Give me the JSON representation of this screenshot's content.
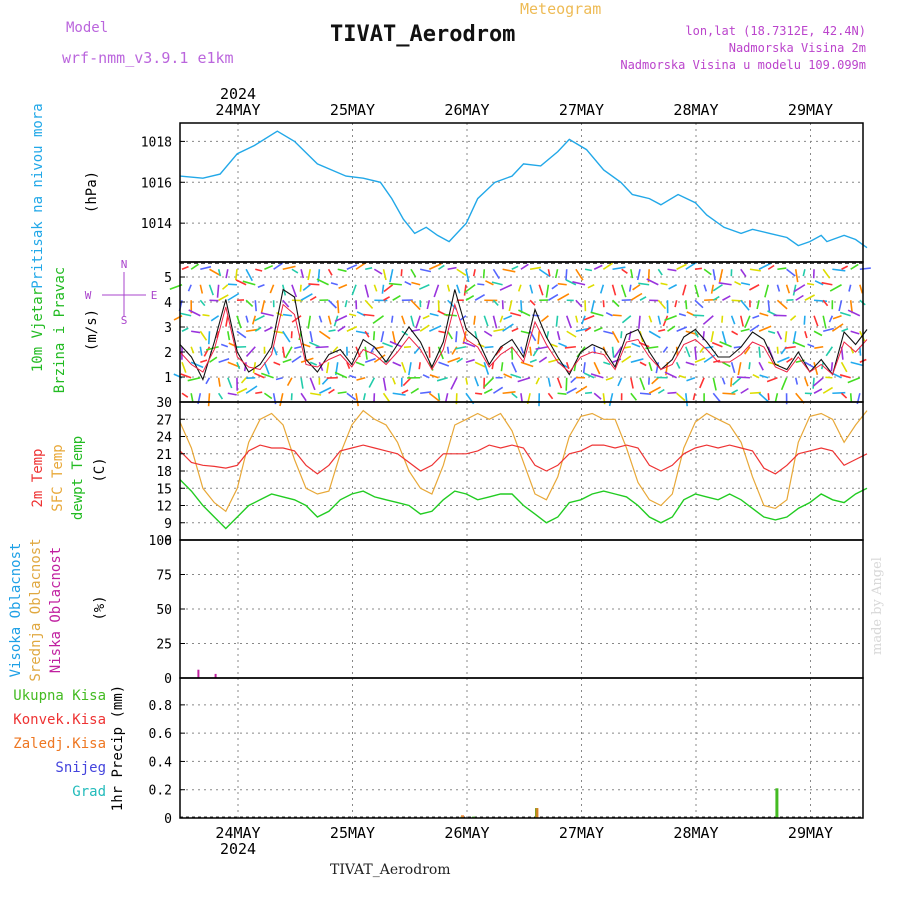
{
  "header": {
    "model_label": "Model",
    "model_name": "wrf-nmm_v3.9.1 e1km",
    "title": "TIVAT_Aerodrom",
    "subtitle": "Meteogram",
    "location": "lon,lat (18.7312E, 42.4N)",
    "elevation": "Nadmorska Visina 2m",
    "model_elevation": "Nadmorska Visina u modelu 109.099m",
    "bottom_title": "TIVAT_Aerodrom",
    "credit": "made by Angel"
  },
  "colors": {
    "pressure": "#22a8e8",
    "t2m": "#ee3333",
    "tsfc": "#e8a838",
    "tdew": "#22cc22",
    "high_cloud": "#1ea0e6",
    "mid_cloud": "#e0a840",
    "low_cloud": "#c020a0",
    "total_precip": "#44bb22",
    "conv_precip": "#ee3333",
    "frozen_precip": "#ee7722",
    "snow": "#4444dd",
    "hail": "#22bbbb",
    "model_label": "#bb66dd",
    "subtitle": "#eebb55"
  },
  "time_axis": {
    "year": "2024",
    "days": [
      "24MAY",
      "25MAY",
      "26MAY",
      "27MAY",
      "28MAY",
      "29MAY"
    ]
  },
  "chart_data": [
    {
      "type": "line",
      "panel": "pressure",
      "ylabel": [
        "Pritisak na nivou mora",
        "(hPa)"
      ],
      "yticks": [
        1014,
        1016,
        1018
      ],
      "ylim": [
        1012.1,
        1018.9
      ],
      "grid": true,
      "x": [
        0.0,
        0.2,
        0.35,
        0.5,
        0.65,
        0.85,
        1.0,
        1.2,
        1.45,
        1.6,
        1.75,
        1.85,
        1.95,
        2.05,
        2.15,
        2.25,
        2.35,
        2.5,
        2.6,
        2.75,
        2.9,
        3.0,
        3.15,
        3.3,
        3.4,
        3.55,
        3.7,
        3.85,
        3.95,
        4.1,
        4.2,
        4.35,
        4.5,
        4.6,
        4.75,
        4.9,
        5.0,
        5.15,
        5.3,
        5.4,
        5.5,
        5.6,
        5.65,
        5.7,
        5.8,
        5.9,
        6.0
      ],
      "series": [
        {
          "values": [
            1016.3,
            1016.2,
            1016.4,
            1017.4,
            1017.8,
            1018.5,
            1018.0,
            1016.9,
            1016.3,
            1016.2,
            1016.0,
            1015.2,
            1014.2,
            1013.5,
            1013.8,
            1013.4,
            1013.1,
            1014.0,
            1015.2,
            1016.0,
            1016.3,
            1016.9,
            1016.8,
            1017.5,
            1018.1,
            1017.6,
            1016.6,
            1016.0,
            1015.4,
            1015.2,
            1014.9,
            1015.4,
            1015.0,
            1014.4,
            1013.8,
            1013.5,
            1013.7,
            1013.5,
            1013.3,
            1012.9,
            1013.1,
            1013.4,
            1013.1,
            1013.2,
            1013.4,
            1013.2,
            1012.8
          ]
        }
      ]
    },
    {
      "type": "line",
      "panel": "wind",
      "ylabel": [
        "10m Vjetar",
        "Brzina i Pravac",
        "(m/s)"
      ],
      "direction_key": [
        "N",
        "W",
        "E",
        "S"
      ],
      "yticks": [
        1,
        2,
        3,
        4,
        5
      ],
      "ylim": [
        0,
        5.6
      ],
      "grid": true,
      "x": [
        0.0,
        0.1,
        0.2,
        0.3,
        0.4,
        0.5,
        0.6,
        0.7,
        0.8,
        0.9,
        1.0,
        1.1,
        1.2,
        1.3,
        1.4,
        1.5,
        1.6,
        1.7,
        1.8,
        1.9,
        2.0,
        2.1,
        2.2,
        2.3,
        2.4,
        2.5,
        2.6,
        2.7,
        2.8,
        2.9,
        3.0,
        3.1,
        3.2,
        3.3,
        3.4,
        3.5,
        3.6,
        3.7,
        3.8,
        3.9,
        4.0,
        4.1,
        4.2,
        4.3,
        4.4,
        4.5,
        4.6,
        4.7,
        4.8,
        4.9,
        5.0,
        5.1,
        5.2,
        5.3,
        5.4,
        5.5,
        5.6,
        5.7,
        5.8,
        5.9,
        6.0
      ],
      "series": [
        {
          "values": [
            2.3,
            1.8,
            0.9,
            2.4,
            4.1,
            2.0,
            1.2,
            1.5,
            2.2,
            4.5,
            4.2,
            1.7,
            1.2,
            1.9,
            2.1,
            1.5,
            2.5,
            2.2,
            1.6,
            2.3,
            3.0,
            2.4,
            1.4,
            2.4,
            4.5,
            2.9,
            2.5,
            1.5,
            2.2,
            2.5,
            1.8,
            3.7,
            2.6,
            1.8,
            1.1,
            2.0,
            2.3,
            2.1,
            1.4,
            2.7,
            2.9,
            2.0,
            1.3,
            1.7,
            2.6,
            2.9,
            2.4,
            1.8,
            1.8,
            2.2,
            2.8,
            2.5,
            1.5,
            1.3,
            2.0,
            1.2,
            1.7,
            1.1,
            2.8,
            2.3,
            2.9
          ]
        },
        {
          "values": [
            2.0,
            1.5,
            1.2,
            2.1,
            3.8,
            1.8,
            1.4,
            1.3,
            1.9,
            3.9,
            3.5,
            1.5,
            1.4,
            1.7,
            1.9,
            1.4,
            2.1,
            1.9,
            1.5,
            2.0,
            2.6,
            2.1,
            1.3,
            2.1,
            3.9,
            2.5,
            2.2,
            1.4,
            1.9,
            2.2,
            1.6,
            3.2,
            2.3,
            1.6,
            1.2,
            1.8,
            2.0,
            1.9,
            1.3,
            2.4,
            2.5,
            1.8,
            1.3,
            1.5,
            2.3,
            2.5,
            2.1,
            1.6,
            1.6,
            1.9,
            2.4,
            2.2,
            1.4,
            1.2,
            1.8,
            1.2,
            1.5,
            1.1,
            2.4,
            2.0,
            2.5
          ]
        }
      ]
    },
    {
      "type": "line",
      "panel": "temperature",
      "ylabel": [
        "2m Temp",
        "SFC Temp",
        "dewpt Temp",
        "(C)"
      ],
      "yticks": [
        6,
        9,
        12,
        15,
        18,
        21,
        24,
        27,
        30
      ],
      "ylim": [
        6,
        30
      ],
      "grid": true,
      "x": [
        0.0,
        0.1,
        0.2,
        0.3,
        0.4,
        0.5,
        0.6,
        0.7,
        0.8,
        0.9,
        1.0,
        1.1,
        1.2,
        1.3,
        1.4,
        1.5,
        1.6,
        1.7,
        1.8,
        1.9,
        2.0,
        2.1,
        2.2,
        2.3,
        2.4,
        2.5,
        2.6,
        2.7,
        2.8,
        2.9,
        3.0,
        3.1,
        3.2,
        3.3,
        3.4,
        3.5,
        3.6,
        3.7,
        3.8,
        3.9,
        4.0,
        4.1,
        4.2,
        4.3,
        4.4,
        4.5,
        4.6,
        4.7,
        4.8,
        4.9,
        5.0,
        5.1,
        5.2,
        5.3,
        5.4,
        5.5,
        5.6,
        5.7,
        5.8,
        5.9,
        6.0
      ],
      "series": [
        {
          "name": "2m Temp",
          "values": [
            21.5,
            19.5,
            19.0,
            18.8,
            18.5,
            19.0,
            21.5,
            22.5,
            22.0,
            22.0,
            21.5,
            19.0,
            17.5,
            19.0,
            21.5,
            22.0,
            22.5,
            22.0,
            21.5,
            21.0,
            19.5,
            18.0,
            19.0,
            21.0,
            21.0,
            21.0,
            21.5,
            22.5,
            22.0,
            22.5,
            22.0,
            19.0,
            18.0,
            19.0,
            21.0,
            21.5,
            22.5,
            22.5,
            22.0,
            22.5,
            22.0,
            19.0,
            18.0,
            19.0,
            21.0,
            22.0,
            22.5,
            22.0,
            22.5,
            22.0,
            21.5,
            18.5,
            17.5,
            19.0,
            21.0,
            21.5,
            22.0,
            21.5,
            19.0,
            20.0,
            21.0
          ]
        },
        {
          "name": "SFC Temp",
          "values": [
            26.5,
            22.0,
            15.0,
            12.5,
            11.0,
            15.0,
            23.0,
            27.0,
            28.0,
            26.0,
            20.0,
            15.0,
            14.0,
            14.5,
            21.0,
            26.0,
            28.5,
            27.0,
            26.0,
            23.0,
            18.0,
            15.0,
            14.0,
            19.0,
            26.0,
            27.0,
            28.0,
            27.0,
            28.0,
            25.0,
            19.5,
            14.0,
            13.0,
            17.0,
            24.0,
            27.5,
            28.0,
            27.0,
            27.0,
            22.0,
            16.0,
            13.0,
            12.0,
            14.0,
            22.0,
            26.5,
            28.0,
            27.0,
            26.0,
            23.0,
            17.0,
            12.0,
            11.5,
            13.0,
            23.0,
            27.5,
            28.0,
            27.0,
            23.0,
            26.0,
            28.5
          ]
        },
        {
          "name": "dewpt Temp",
          "values": [
            16.5,
            14.5,
            12.0,
            10.0,
            8.0,
            10.0,
            12.0,
            13.0,
            14.0,
            13.5,
            13.0,
            12.0,
            10.0,
            11.0,
            13.0,
            14.0,
            14.5,
            13.5,
            13.0,
            12.5,
            12.0,
            10.5,
            11.0,
            13.0,
            14.5,
            14.0,
            13.0,
            13.5,
            14.0,
            14.0,
            12.0,
            10.5,
            9.0,
            10.0,
            12.5,
            13.0,
            14.0,
            14.5,
            14.0,
            13.5,
            12.0,
            10.0,
            9.0,
            10.0,
            13.0,
            14.0,
            13.5,
            13.0,
            14.0,
            13.0,
            11.5,
            10.0,
            9.5,
            10.0,
            11.5,
            12.5,
            14.0,
            13.0,
            12.5,
            14.0,
            15.0
          ]
        }
      ]
    },
    {
      "type": "bar",
      "panel": "cloud",
      "ylabel": [
        "Visoka Oblacnost",
        "Srednja Oblacnost",
        "Niska Oblacnost",
        "(%)"
      ],
      "yticks": [
        0,
        25,
        50,
        75,
        100
      ],
      "ylim": [
        0,
        100
      ],
      "grid": true,
      "categories": [
        0.1,
        0.25,
        0.4,
        0.5,
        0.55,
        0.7,
        0.85,
        1.0,
        1.1,
        1.25,
        1.35,
        1.5,
        1.7,
        1.8,
        1.95,
        2.05,
        2.15,
        2.25,
        2.35,
        2.5,
        2.65,
        2.8,
        2.95,
        3.05,
        3.15,
        3.25,
        3.35,
        3.5,
        3.65,
        3.8,
        3.95,
        4.05,
        4.2,
        4.35,
        4.45,
        4.6,
        4.75,
        4.9,
        5.0,
        5.1,
        5.2,
        5.3,
        5.4,
        5.55,
        5.7,
        5.85,
        5.95
      ],
      "series": [
        {
          "name": "Visoka Oblacnost",
          "values": [
            0,
            0,
            0,
            0,
            0,
            0,
            0,
            0,
            0,
            0,
            0,
            0,
            0,
            0,
            0,
            0,
            0,
            0,
            0,
            0,
            0,
            0,
            0,
            0,
            0,
            0,
            0,
            0,
            0,
            0,
            0,
            0,
            0,
            0,
            0,
            0,
            0,
            0,
            0,
            0,
            0,
            0,
            0,
            0,
            0,
            0,
            0
          ]
        },
        {
          "name": "Srednja Oblacnost",
          "values": [
            0,
            0,
            0,
            0,
            0,
            0,
            0,
            0,
            0,
            0,
            0,
            0,
            0,
            0,
            0,
            0,
            0,
            0,
            0,
            0,
            0,
            0,
            0,
            0,
            0,
            0,
            0,
            0,
            0,
            0,
            0,
            0,
            0,
            0,
            0,
            0,
            0,
            0,
            0,
            0,
            0,
            0,
            0,
            0,
            0,
            0,
            0
          ]
        },
        {
          "name": "Niska Oblacnost",
          "values": [
            6,
            3,
            0,
            0,
            0,
            0,
            0,
            0,
            0,
            0,
            0,
            0,
            0,
            0,
            0,
            0,
            0,
            0,
            0,
            0,
            0,
            0,
            0,
            0,
            0,
            0,
            0,
            0,
            0,
            0,
            0,
            0,
            0,
            0,
            0,
            0,
            0,
            0,
            0,
            0,
            0,
            0,
            0,
            0,
            0,
            0,
            0
          ]
        }
      ]
    },
    {
      "type": "bar",
      "panel": "precip",
      "ylabel": [
        "Ukupna Kisa",
        "Konvek.Kisa",
        "Zaledj.Kisa",
        "Snijeg",
        "Grad",
        "1hr Precip (mm)"
      ],
      "yticks": [
        0,
        0.2,
        0.4,
        0.6,
        0.8
      ],
      "ylim": [
        0,
        0.99
      ],
      "grid": true,
      "categories": [
        2.45,
        2.55,
        3.1,
        3.15,
        5.2
      ],
      "series": [
        {
          "name": "Ukupna Kisa",
          "values": [
            0.01,
            0.01,
            0.07,
            0.0,
            0.21
          ]
        },
        {
          "name": "Zaledj.Kisa",
          "values": [
            0.02,
            0.0,
            0.07,
            0.0,
            0.0
          ]
        }
      ]
    }
  ]
}
